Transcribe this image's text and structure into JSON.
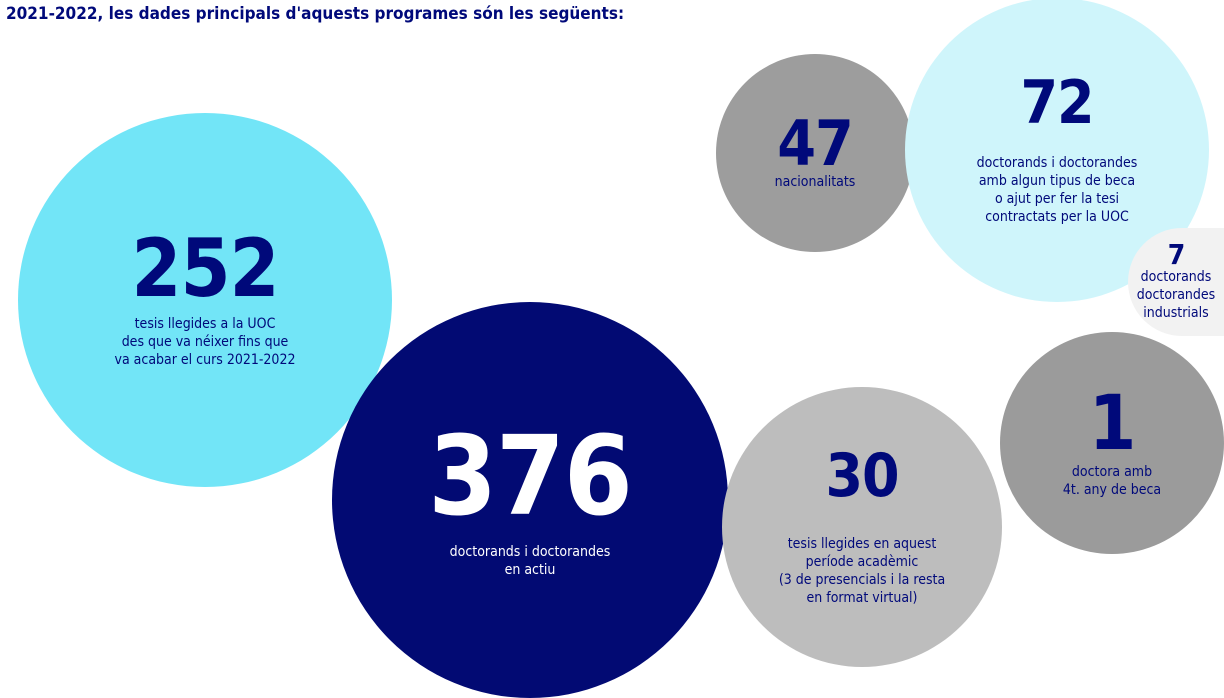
{
  "header": {
    "text": "2021-2022, les dades principals d'aquests programes són les següents:"
  },
  "bubbles": [
    {
      "number": "252",
      "lines": [
        "tesis llegides a la UOC",
        "des que va néixer fins que",
        "va acabar el curs 2021-2022"
      ]
    },
    {
      "number": "376",
      "lines": [
        "doctorands i doctorandes",
        "en actiu"
      ]
    },
    {
      "number": "30",
      "lines": [
        "tesis llegides en aquest",
        "període acadèmic",
        "(3 de presencials i la resta",
        "en format virtual)"
      ]
    },
    {
      "number": "1",
      "lines": [
        "doctora amb",
        "4t. any de beca"
      ]
    },
    {
      "number": "47",
      "lines": [
        "nacionalitats"
      ]
    },
    {
      "number": "72",
      "lines": [
        "doctorands i doctorandes",
        "amb algun tipus de beca",
        "o ajut per fer la tesi",
        "contractats per la UOC"
      ]
    },
    {
      "number": "7",
      "lines": [
        "doctorands",
        "doctorandes",
        "industrials"
      ]
    }
  ]
}
